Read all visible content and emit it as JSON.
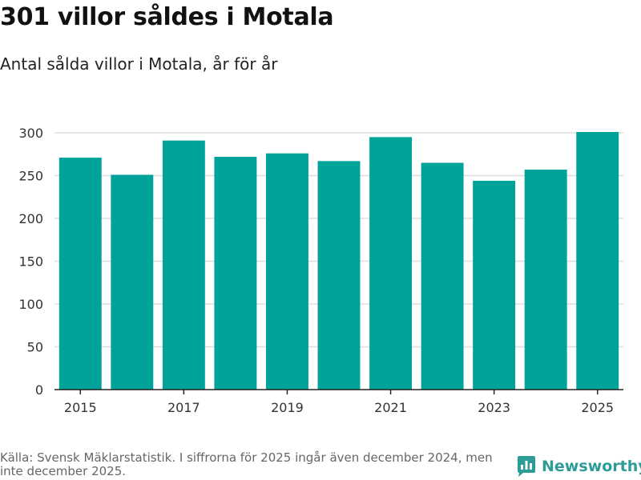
{
  "title": "301 villor såldes i Motala",
  "subtitle": "Antal sålda villor i Motala, år för år",
  "footer": {
    "source": "Källa: Svensk Mäklarstatistik. I siffrorna för 2025 ingår även december 2024, men inte december 2025."
  },
  "brand": {
    "name": "Newsworthy",
    "icon": "newsworthy-logo-icon"
  },
  "colors": {
    "bar": "#00a39a",
    "brand": "#2e9c96",
    "grid": "#dddddd",
    "axis": "#222222",
    "tick_text": "#333333"
  },
  "chart_data": {
    "type": "bar",
    "title": "301 villor såldes i Motala",
    "subtitle": "Antal sålda villor i Motala, år för år",
    "xlabel": "",
    "ylabel": "",
    "categories": [
      "2015",
      "2016",
      "2017",
      "2018",
      "2019",
      "2020",
      "2021",
      "2022",
      "2023",
      "2024",
      "2025"
    ],
    "values": [
      271,
      251,
      291,
      272,
      276,
      267,
      295,
      265,
      244,
      257,
      301
    ],
    "x_tick_labels": [
      "2015",
      "2017",
      "2019",
      "2021",
      "2023",
      "2025"
    ],
    "y_ticks": [
      0,
      50,
      100,
      150,
      200,
      250,
      300
    ],
    "ylim": [
      0,
      315
    ],
    "grid": true,
    "legend": "none"
  }
}
